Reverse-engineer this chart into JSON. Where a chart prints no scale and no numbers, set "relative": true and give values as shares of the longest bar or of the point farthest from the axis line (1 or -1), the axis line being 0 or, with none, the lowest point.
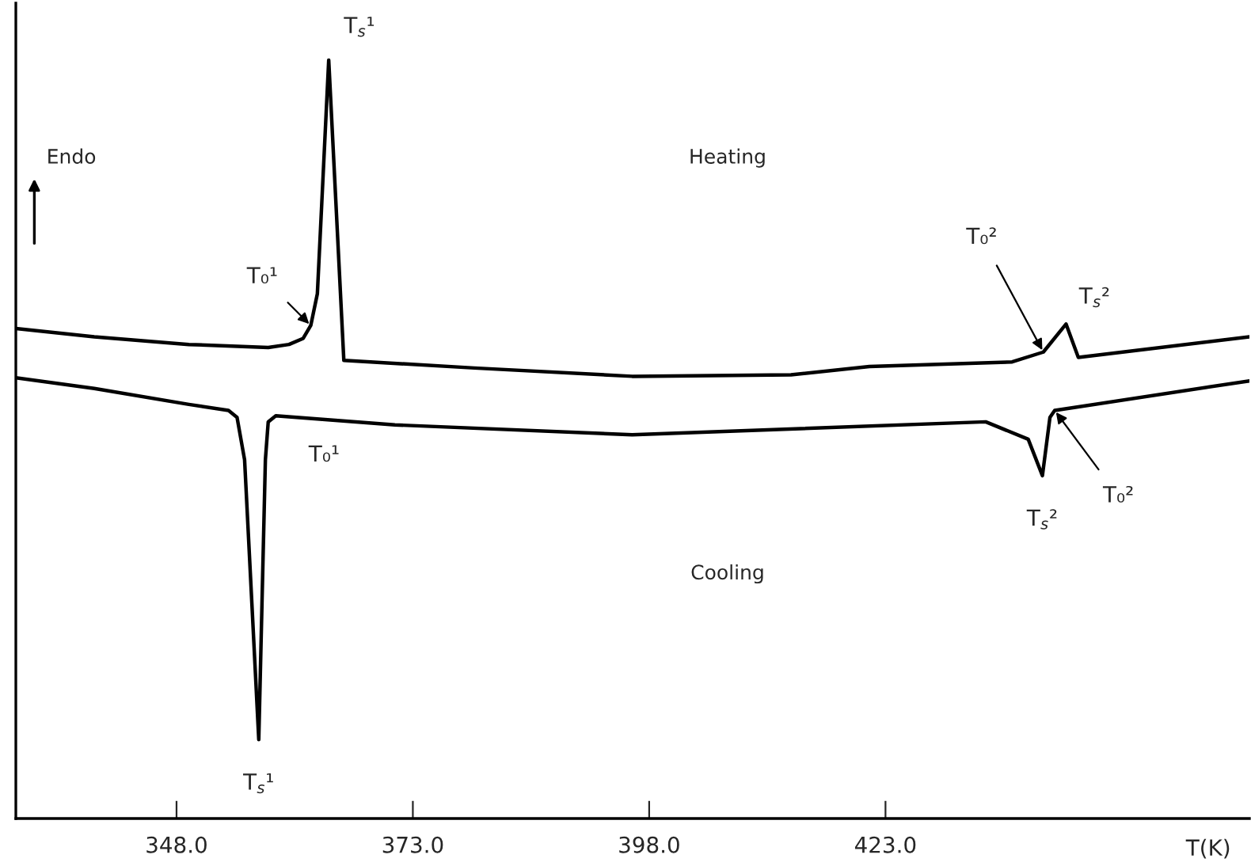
{
  "chart_data": {
    "type": "line",
    "relative": true,
    "xlabel": "T(K)",
    "xlim": [
      331,
      461.5
    ],
    "xticks": [
      {
        "value": 348,
        "label": "348.0"
      },
      {
        "value": 373,
        "label": "373.0"
      },
      {
        "value": 398,
        "label": "398.0"
      },
      {
        "value": 423,
        "label": "423.0"
      }
    ],
    "grid": false,
    "legend": false,
    "marker": "none",
    "line_style": "solid",
    "series": [
      {
        "color": "#000000",
        "x": [
          331,
          339.3,
          349.3,
          357.7,
          359.9,
          361.4,
          362.2,
          362.9,
          364.1,
          365.7,
          379.5,
          396.2,
          413.0,
          421.3,
          436.4,
          439.7,
          442.1,
          443.4,
          461.5
        ],
        "values": [
          0.646,
          0.635,
          0.625,
          0.621,
          0.625,
          0.633,
          0.65,
          0.692,
          1.0,
          0.604,
          0.594,
          0.583,
          0.585,
          0.596,
          0.602,
          0.615,
          0.652,
          0.608,
          0.635
        ]
      },
      {
        "color": "#000000",
        "x": [
          331,
          339.3,
          349.3,
          353.5,
          354.4,
          355.2,
          356.7,
          357.4,
          357.7,
          358.5,
          371.1,
          396.2,
          433.6,
          438.1,
          439.6,
          440.4,
          440.9,
          461.5
        ],
        "values": [
          0.581,
          0.567,
          0.546,
          0.538,
          0.529,
          0.473,
          0.104,
          0.473,
          0.523,
          0.531,
          0.519,
          0.506,
          0.523,
          0.5,
          0.452,
          0.529,
          0.538,
          0.577
        ]
      }
    ],
    "annotations": [
      "Endo",
      "Heating",
      "Cooling",
      {
        "text": "T₀¹",
        "x": 362.2,
        "y": 0.65
      },
      {
        "text": "T$_{s}$¹",
        "x": 364.1,
        "y": 1.0
      },
      {
        "text": "T$_{s}$¹",
        "x": 356.7,
        "y": 0.104
      },
      {
        "text": "T₀¹",
        "x": 358.5,
        "y": 0.531
      },
      {
        "text": "T₀²",
        "x": 439.7,
        "y": 0.615
      },
      {
        "text": "T$_{s}$²",
        "x": 442.1,
        "y": 0.652
      },
      {
        "text": "T$_{s}$²",
        "x": 439.6,
        "y": 0.452
      },
      {
        "text": "T₀²",
        "x": 440.9,
        "y": 0.538
      }
    ]
  }
}
